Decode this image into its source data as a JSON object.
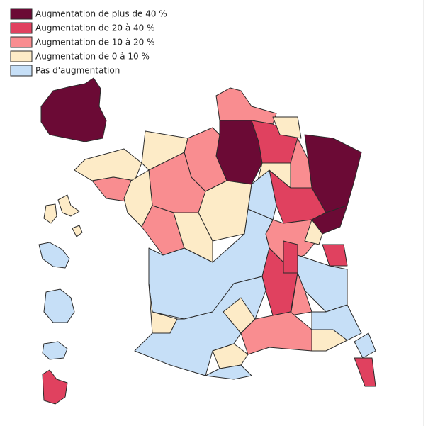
{
  "legend": {
    "items": [
      {
        "label": "Augmentation de plus de 40 %",
        "color": "#6b0a35"
      },
      {
        "label": "Augmentation de 20 à 40 %",
        "color": "#e0415f"
      },
      {
        "label": "Augmentation de 10 à 20 %",
        "color": "#f98d90"
      },
      {
        "label": "Augmentation de 0 à 10 %",
        "color": "#fdebc7"
      },
      {
        "label": "Pas d'augmentation",
        "color": "#c6dff7"
      }
    ]
  }
}
